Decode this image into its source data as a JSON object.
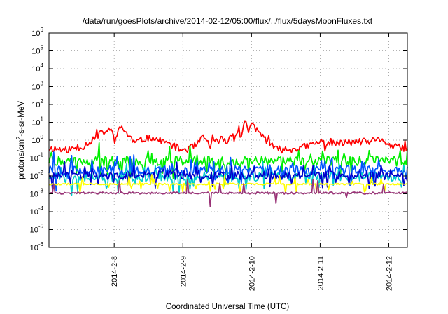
{
  "chart_data": {
    "type": "line",
    "title": "/data/run/goesPlots/archive/2014-02-12/05:00/flux/../flux/5daysMoonFluxes.txt",
    "xlabel": "Coordinated Universal Time (UTC)",
    "ylabel": "protons/cm2-s-sr-MeV",
    "ylabel_parts": {
      "pre": "protons/cm",
      "sup": "2",
      "post": "-s-sr-MeV"
    },
    "y_scale": "log",
    "ylim": [
      1e-06,
      1000000.0
    ],
    "y_ticks": [
      {
        "base": "10",
        "exp": "-6",
        "value": 1e-06
      },
      {
        "base": "10",
        "exp": "-5",
        "value": 1e-05
      },
      {
        "base": "10",
        "exp": "-4",
        "value": 0.0001
      },
      {
        "base": "10",
        "exp": "-3",
        "value": 0.001
      },
      {
        "base": "10",
        "exp": "-2",
        "value": 0.01
      },
      {
        "base": "10",
        "exp": "-1",
        "value": 0.1
      },
      {
        "base": "10",
        "exp": "0",
        "value": 1
      },
      {
        "base": "10",
        "exp": "1",
        "value": 10
      },
      {
        "base": "10",
        "exp": "2",
        "value": 100
      },
      {
        "base": "10",
        "exp": "3",
        "value": 1000
      },
      {
        "base": "10",
        "exp": "4",
        "value": 10000
      },
      {
        "base": "10",
        "exp": "5",
        "value": 100000
      },
      {
        "base": "10",
        "exp": "6",
        "value": 1000000
      }
    ],
    "x_range_days": [
      0,
      5.22
    ],
    "x_ticks": [
      {
        "label": "2014-2-8",
        "day": 0.95
      },
      {
        "label": "2014-2-9",
        "day": 1.95
      },
      {
        "label": "2014-2-10",
        "day": 2.95
      },
      {
        "label": "2014-2-11",
        "day": 3.95
      },
      {
        "label": "2014-2-12",
        "day": 4.95
      }
    ],
    "grid": true,
    "legend": "none",
    "series": [
      {
        "color": "#ff0000",
        "keypoints": [
          [
            0,
            0.35
          ],
          [
            0.3,
            0.3
          ],
          [
            0.5,
            0.45
          ],
          [
            0.65,
            1.2
          ],
          [
            0.8,
            3.0
          ],
          [
            0.9,
            3.5
          ],
          [
            0.97,
            1.2
          ],
          [
            1.05,
            6.0
          ],
          [
            1.15,
            2.0
          ],
          [
            1.25,
            0.7
          ],
          [
            1.4,
            1.2
          ],
          [
            1.5,
            1.5
          ],
          [
            1.65,
            0.8
          ],
          [
            1.82,
            0.5
          ],
          [
            1.9,
            0.3
          ],
          [
            2.0,
            0.3
          ],
          [
            2.15,
            0.5
          ],
          [
            2.25,
            1.5
          ],
          [
            2.35,
            0.5
          ],
          [
            2.5,
            1.2
          ],
          [
            2.6,
            0.8
          ],
          [
            2.68,
            3.0
          ],
          [
            2.75,
            2.0
          ],
          [
            2.8,
            1.5
          ],
          [
            2.85,
            18
          ],
          [
            2.9,
            3.0
          ],
          [
            2.97,
            7.0
          ],
          [
            3.05,
            3.0
          ],
          [
            3.12,
            1.5
          ],
          [
            3.2,
            0.8
          ],
          [
            3.3,
            0.3
          ],
          [
            3.5,
            0.3
          ],
          [
            3.7,
            0.4
          ],
          [
            3.85,
            0.6
          ],
          [
            3.95,
            0.8
          ],
          [
            4.1,
            0.8
          ],
          [
            4.2,
            0.6
          ],
          [
            4.4,
            0.8
          ],
          [
            4.6,
            0.8
          ],
          [
            4.75,
            0.9
          ],
          [
            4.85,
            1.2
          ],
          [
            4.95,
            0.5
          ],
          [
            5.05,
            0.4
          ],
          [
            5.22,
            0.35
          ]
        ],
        "jitter": 0.2,
        "spike_prob": 0.05,
        "spike_amp": 0.3,
        "seed": 11
      },
      {
        "color": "#00ee00",
        "base": 0.07,
        "jitter": 0.26,
        "spike_prob": 0.14,
        "spike_amp": 0.55,
        "seed": 22
      },
      {
        "color": "#00cccc",
        "base": 0.009,
        "jitter": 0.26,
        "spike_prob": 0.16,
        "spike_amp": 0.55,
        "seed": 33
      },
      {
        "color": "#0055ff",
        "base": 0.02,
        "jitter": 0.28,
        "spike_prob": 0.16,
        "spike_amp": 0.6,
        "seed": 44
      },
      {
        "color": "#0000cc",
        "base": 0.011,
        "jitter": 0.24,
        "spike_prob": 0.12,
        "spike_amp": 0.5,
        "seed": 55
      },
      {
        "color": "#ffff00",
        "base": 0.0035,
        "jitter": 0.05,
        "spike_prob": 0.1,
        "spike_amp": 0.35,
        "seed": 66
      },
      {
        "color": "#993377",
        "base": 0.0011,
        "jitter": 0.06,
        "spike_prob": 0.03,
        "spike_amp": 0.5,
        "seed": 77
      }
    ]
  }
}
